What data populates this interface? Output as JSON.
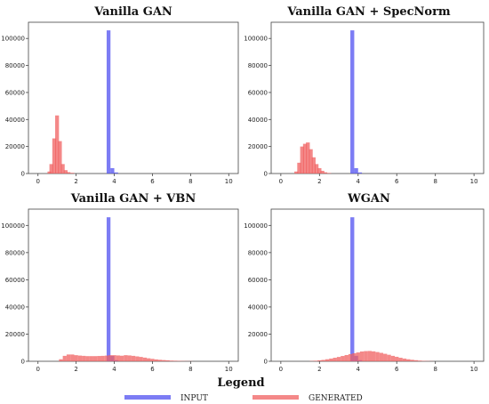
{
  "chart_data": [
    {
      "type": "histogram",
      "title": "Vanilla GAN",
      "xlim": [
        -0.5,
        10.5
      ],
      "ylim": [
        0,
        112000
      ],
      "xticks": [
        0,
        2,
        4,
        6,
        8,
        10
      ],
      "yticks": [
        0,
        20000,
        40000,
        60000,
        80000,
        100000
      ],
      "bin_width": 0.2,
      "series": [
        {
          "name": "INPUT",
          "color": "#5050f0",
          "bins": [
            [
              3.7,
              106000
            ],
            [
              3.9,
              4000
            ],
            [
              4.1,
              800
            ]
          ]
        },
        {
          "name": "GENERATED",
          "color": "#f06060",
          "bins": [
            [
              0.6,
              1500
            ],
            [
              0.7,
              7000
            ],
            [
              0.85,
              26000
            ],
            [
              1.0,
              43000
            ],
            [
              1.15,
              24000
            ],
            [
              1.3,
              7000
            ],
            [
              1.45,
              2500
            ],
            [
              1.6,
              1000
            ],
            [
              1.8,
              500
            ]
          ]
        }
      ]
    },
    {
      "type": "histogram",
      "title": "Vanilla GAN + SpecNorm",
      "xlim": [
        -0.5,
        10.5
      ],
      "ylim": [
        0,
        112000
      ],
      "xticks": [
        0,
        2,
        4,
        6,
        8,
        10
      ],
      "yticks": [
        0,
        20000,
        40000,
        60000,
        80000,
        100000
      ],
      "bin_width": 0.2,
      "series": [
        {
          "name": "INPUT",
          "color": "#5050f0",
          "bins": [
            [
              3.7,
              106000
            ],
            [
              3.9,
              4000
            ],
            [
              4.1,
              800
            ]
          ]
        },
        {
          "name": "GENERATED",
          "color": "#f06060",
          "bins": [
            [
              0.8,
              1500
            ],
            [
              0.95,
              8000
            ],
            [
              1.1,
              20000
            ],
            [
              1.25,
              22000
            ],
            [
              1.4,
              23000
            ],
            [
              1.55,
              18000
            ],
            [
              1.7,
              12000
            ],
            [
              1.85,
              7000
            ],
            [
              2.0,
              4000
            ],
            [
              2.15,
              2000
            ],
            [
              2.3,
              900
            ],
            [
              2.5,
              400
            ]
          ]
        }
      ]
    },
    {
      "type": "histogram",
      "title": "Vanilla GAN + VBN",
      "xlim": [
        -0.5,
        10.5
      ],
      "ylim": [
        0,
        112000
      ],
      "xticks": [
        0,
        2,
        4,
        6,
        8,
        10
      ],
      "yticks": [
        0,
        20000,
        40000,
        60000,
        80000,
        100000
      ],
      "bin_width": 0.2,
      "series": [
        {
          "name": "INPUT",
          "color": "#5050f0",
          "bins": [
            [
              3.7,
              106000
            ],
            [
              3.9,
              4000
            ],
            [
              4.1,
              800
            ]
          ]
        },
        {
          "name": "GENERATED",
          "color": "#f06060",
          "bins": [
            [
              1.2,
              1500
            ],
            [
              1.4,
              4000
            ],
            [
              1.6,
              5000
            ],
            [
              1.8,
              5000
            ],
            [
              2.0,
              4500
            ],
            [
              2.2,
              4200
            ],
            [
              2.4,
              4000
            ],
            [
              2.6,
              3800
            ],
            [
              2.8,
              3800
            ],
            [
              3.0,
              3800
            ],
            [
              3.2,
              3900
            ],
            [
              3.4,
              4000
            ],
            [
              3.6,
              4200
            ],
            [
              3.8,
              4500
            ],
            [
              4.0,
              4500
            ],
            [
              4.2,
              4300
            ],
            [
              4.4,
              4100
            ],
            [
              4.6,
              4500
            ],
            [
              4.8,
              4300
            ],
            [
              5.0,
              4000
            ],
            [
              5.2,
              3600
            ],
            [
              5.4,
              3200
            ],
            [
              5.6,
              2700
            ],
            [
              5.8,
              2200
            ],
            [
              6.0,
              1800
            ],
            [
              6.2,
              1400
            ],
            [
              6.4,
              1100
            ],
            [
              6.6,
              900
            ],
            [
              6.8,
              700
            ],
            [
              7.0,
              500
            ],
            [
              7.2,
              400
            ],
            [
              7.4,
              300
            ],
            [
              7.6,
              200
            ],
            [
              7.8,
              150
            ],
            [
              8.0,
              100
            ]
          ]
        }
      ]
    },
    {
      "type": "histogram",
      "title": "WGAN",
      "xlim": [
        -0.5,
        10.5
      ],
      "ylim": [
        0,
        112000
      ],
      "xticks": [
        0,
        2,
        4,
        6,
        8,
        10
      ],
      "yticks": [
        0,
        20000,
        40000,
        60000,
        80000,
        100000
      ],
      "bin_width": 0.2,
      "series": [
        {
          "name": "INPUT",
          "color": "#5050f0",
          "bins": [
            [
              3.7,
              106000
            ],
            [
              3.9,
              4000
            ],
            [
              4.1,
              800
            ]
          ]
        },
        {
          "name": "GENERATED",
          "color": "#f06060",
          "bins": [
            [
              1.6,
              200
            ],
            [
              1.8,
              400
            ],
            [
              2.0,
              700
            ],
            [
              2.2,
              1000
            ],
            [
              2.4,
              1500
            ],
            [
              2.6,
              2000
            ],
            [
              2.8,
              2600
            ],
            [
              3.0,
              3200
            ],
            [
              3.2,
              3900
            ],
            [
              3.4,
              4600
            ],
            [
              3.6,
              5300
            ],
            [
              3.8,
              5900
            ],
            [
              4.0,
              6500
            ],
            [
              4.2,
              7200
            ],
            [
              4.4,
              7500
            ],
            [
              4.6,
              7600
            ],
            [
              4.8,
              7300
            ],
            [
              5.0,
              6800
            ],
            [
              5.2,
              6200
            ],
            [
              5.4,
              5500
            ],
            [
              5.6,
              4800
            ],
            [
              5.8,
              4000
            ],
            [
              6.0,
              3300
            ],
            [
              6.2,
              2600
            ],
            [
              6.4,
              2000
            ],
            [
              6.6,
              1500
            ],
            [
              6.8,
              1100
            ],
            [
              7.0,
              800
            ],
            [
              7.2,
              500
            ],
            [
              7.4,
              300
            ],
            [
              7.6,
              200
            ],
            [
              7.8,
              100
            ]
          ]
        }
      ]
    }
  ],
  "legend": {
    "title": "Legend",
    "entries": [
      {
        "label": "INPUT",
        "color": "#5050f0"
      },
      {
        "label": "GENERATED",
        "color": "#f06060"
      }
    ]
  }
}
